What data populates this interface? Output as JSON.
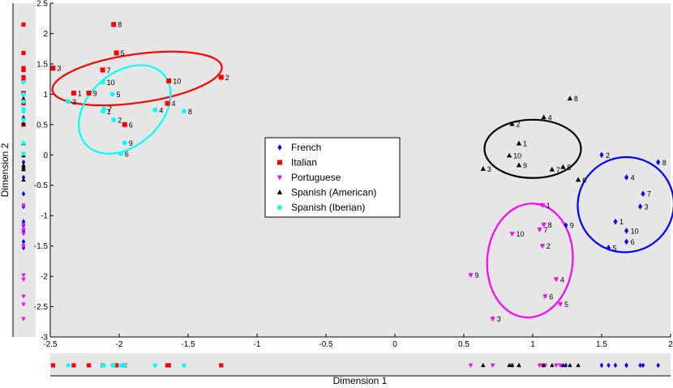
{
  "chart_data": {
    "type": "scatter",
    "xlabel": "Dimension 1",
    "ylabel": "Dimension 2",
    "xlim": [
      -2.5,
      2
    ],
    "ylim": [
      -3,
      2.5
    ],
    "xticks": [
      -2.5,
      -2,
      -1.5,
      -1,
      -0.5,
      0,
      0.5,
      1,
      1.5,
      2
    ],
    "yticks": [
      -3,
      -2.5,
      -2,
      -1.5,
      -1,
      -0.5,
      0,
      0.5,
      1,
      1.5,
      2,
      2.5
    ],
    "xtick_labels": [
      "-2.5",
      "-2",
      "-1.5",
      "-1",
      "-0.5",
      "0",
      "0.5",
      "1",
      "1.5",
      "2"
    ],
    "ytick_labels": [
      "-3",
      "-2.5",
      "-2",
      "-1.5",
      "-1",
      "-0.5",
      "0",
      "0.5",
      "1",
      "1.5",
      "2",
      "2.5"
    ],
    "grid": false,
    "background": "#e6e6e6",
    "legend_position": "center",
    "marginal_rugs": true,
    "series": [
      {
        "name": "French",
        "color": "#0000ff",
        "marker": "diamond",
        "points": [
          {
            "label": "1",
            "x": 1.6,
            "y": -1.1
          },
          {
            "label": "2",
            "x": 1.5,
            "y": 0.0
          },
          {
            "label": "3",
            "x": 1.78,
            "y": -0.85
          },
          {
            "label": "4",
            "x": 1.68,
            "y": -0.37
          },
          {
            "label": "5",
            "x": 1.55,
            "y": -1.53
          },
          {
            "label": "6",
            "x": 1.68,
            "y": -1.43
          },
          {
            "label": "7",
            "x": 1.8,
            "y": -0.64
          },
          {
            "label": "8",
            "x": 1.91,
            "y": -0.12
          },
          {
            "label": "9",
            "x": 1.24,
            "y": -1.16
          },
          {
            "label": "10",
            "x": 1.68,
            "y": -1.25
          }
        ],
        "ellipse": {
          "cx": 1.675,
          "cy": -0.82,
          "rx": 0.35,
          "ry": 0.78,
          "angle": -30
        }
      },
      {
        "name": "Italian",
        "color": "#ff0000",
        "marker": "square",
        "points": [
          {
            "label": "1",
            "x": -2.33,
            "y": 1.02
          },
          {
            "label": "2",
            "x": -1.26,
            "y": 1.28
          },
          {
            "label": "3",
            "x": -2.48,
            "y": 1.43
          },
          {
            "label": "4",
            "x": -1.65,
            "y": 0.85
          },
          {
            "label": "5",
            "x": -2.02,
            "y": 1.68
          },
          {
            "label": "6",
            "x": -1.96,
            "y": 0.5
          },
          {
            "label": "7",
            "x": -2.12,
            "y": 1.4
          },
          {
            "label": "8",
            "x": -2.04,
            "y": 2.15
          },
          {
            "label": "9",
            "x": -2.22,
            "y": 1.02
          },
          {
            "label": "10",
            "x": -1.64,
            "y": 1.22
          }
        ],
        "ellipse": {
          "cx": -1.87,
          "cy": 1.26,
          "rx": 0.62,
          "ry": 0.4,
          "angle": -8
        }
      },
      {
        "name": "Portuguese",
        "color": "#ff00ff",
        "marker": "triangle-down",
        "points": [
          {
            "label": "1",
            "x": 1.07,
            "y": -0.83
          },
          {
            "label": "2",
            "x": 1.07,
            "y": -1.5
          },
          {
            "label": "3",
            "x": 0.71,
            "y": -2.7
          },
          {
            "label": "4",
            "x": 1.17,
            "y": -2.05
          },
          {
            "label": "5",
            "x": 1.2,
            "y": -2.46
          },
          {
            "label": "6",
            "x": 1.09,
            "y": -2.33
          },
          {
            "label": "7",
            "x": 1.05,
            "y": -1.23
          },
          {
            "label": "8",
            "x": 1.08,
            "y": -1.15
          },
          {
            "label": "9",
            "x": 0.55,
            "y": -1.98
          },
          {
            "label": "10",
            "x": 0.85,
            "y": -1.3
          }
        ],
        "ellipse": {
          "cx": 0.98,
          "cy": -1.74,
          "rx": 0.31,
          "ry": 0.94,
          "angle": 5
        }
      },
      {
        "name": "Spanish (American)",
        "color": "#000000",
        "marker": "triangle-up",
        "points": [
          {
            "label": "1",
            "x": 0.9,
            "y": 0.19
          },
          {
            "label": "2",
            "x": 0.85,
            "y": 0.51
          },
          {
            "label": "3",
            "x": 0.64,
            "y": -0.23
          },
          {
            "label": "4",
            "x": 1.08,
            "y": 0.62
          },
          {
            "label": "5",
            "x": 1.22,
            "y": -0.2
          },
          {
            "label": "6",
            "x": 1.33,
            "y": -0.41
          },
          {
            "label": "7",
            "x": 1.14,
            "y": -0.24
          },
          {
            "label": "8",
            "x": 1.27,
            "y": 0.93
          },
          {
            "label": "9",
            "x": 0.9,
            "y": -0.17
          },
          {
            "label": "10",
            "x": 0.83,
            "y": -0.01
          }
        ],
        "ellipse": {
          "cx": 1.0,
          "cy": 0.1,
          "rx": 0.35,
          "ry": 0.48,
          "angle": 0
        }
      },
      {
        "name": "Spanish (Iberian)",
        "color": "#00ffff",
        "marker": "circle",
        "points": [
          {
            "label": "1",
            "x": -2.12,
            "y": 0.72
          },
          {
            "label": "2",
            "x": -2.04,
            "y": 0.58
          },
          {
            "label": "3",
            "x": -2.37,
            "y": 0.88
          },
          {
            "label": "4",
            "x": -1.74,
            "y": 0.74
          },
          {
            "label": "5",
            "x": -2.05,
            "y": 1.0
          },
          {
            "label": "6",
            "x": -1.99,
            "y": 0.02
          },
          {
            "label": "7",
            "x": -2.11,
            "y": 0.76
          },
          {
            "label": "8",
            "x": -1.53,
            "y": 0.72
          },
          {
            "label": "9",
            "x": -1.96,
            "y": 0.2
          },
          {
            "label": "10",
            "x": -2.12,
            "y": 1.2
          }
        ],
        "ellipse": {
          "cx": -1.96,
          "cy": 0.75,
          "rx": 0.38,
          "ry": 0.6,
          "angle": -42
        }
      }
    ]
  }
}
